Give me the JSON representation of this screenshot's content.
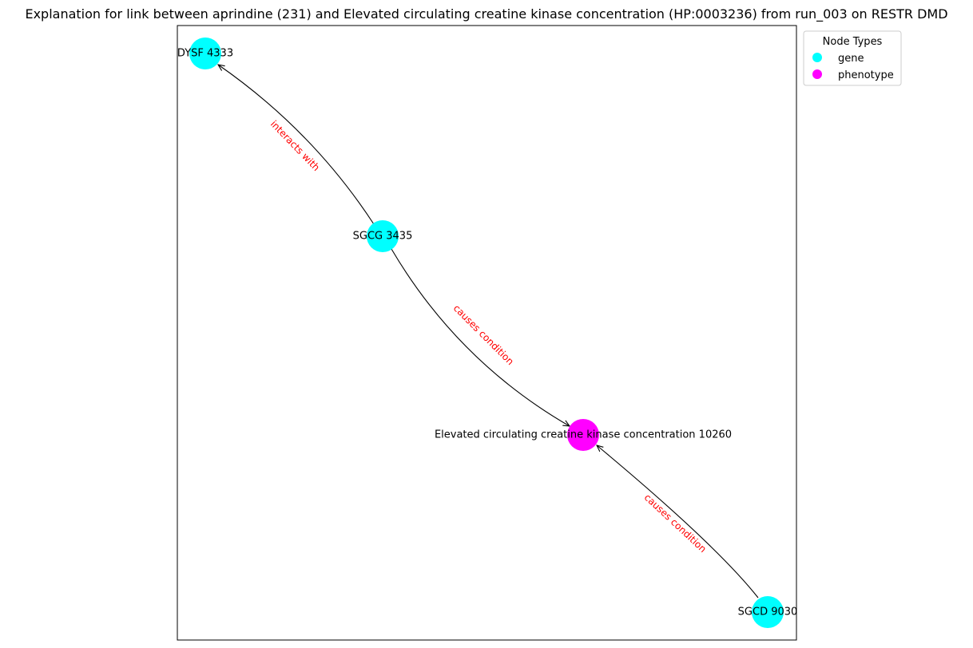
{
  "figure": {
    "title": "Explanation for link between aprindine (231) and Elevated circulating creatine kinase concentration (HP:0003236) from run_003 on RESTR DMD"
  },
  "node_types": {
    "gene": "#00ffff",
    "phenotype": "#ff00ff"
  },
  "nodes": [
    {
      "id": "dysf",
      "label": "DYSF 4333",
      "type": "gene"
    },
    {
      "id": "sgcg",
      "label": "SGCG 3435",
      "type": "gene"
    },
    {
      "id": "ck",
      "label": "Elevated circulating creatine kinase concentration 10260",
      "type": "phenotype"
    },
    {
      "id": "sgcd",
      "label": "SGCD 9030",
      "type": "gene"
    }
  ],
  "edges": [
    {
      "source": "sgcg",
      "target": "dysf",
      "label": "interacts with"
    },
    {
      "source": "sgcg",
      "target": "ck",
      "label": "causes condition"
    },
    {
      "source": "sgcd",
      "target": "ck",
      "label": "causes condition"
    }
  ],
  "legend": {
    "title": "Node Types",
    "items": [
      {
        "label": "gene",
        "color": "#00ffff"
      },
      {
        "label": "phenotype",
        "color": "#ff00ff"
      }
    ]
  }
}
